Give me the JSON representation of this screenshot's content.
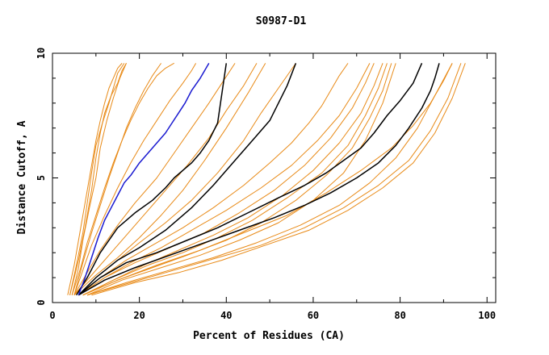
{
  "chart_data": {
    "type": "line",
    "title": "S0987-D1",
    "xlabel": "Percent of Residues (CA)",
    "ylabel": "Distance Cutoff, A",
    "xlim": [
      0,
      102
    ],
    "ylim": [
      0,
      10
    ],
    "xticks": [
      "0",
      "20",
      "40",
      "60",
      "80",
      "100"
    ],
    "yticks": [
      "0",
      "5",
      "10"
    ],
    "grid": false,
    "colors": {
      "orange": "#e88a17",
      "black": "#000000",
      "blue": "#1a1ad0"
    },
    "series": [
      {
        "color": "orange",
        "x": [
          3.5,
          5,
          6,
          7,
          8,
          9,
          10,
          11,
          12,
          13,
          14,
          15,
          16
        ],
        "y": [
          0.3,
          1.5,
          2.5,
          3.5,
          4.5,
          5.5,
          6.5,
          7.3,
          8.0,
          8.6,
          9.0,
          9.4,
          9.6
        ]
      },
      {
        "color": "orange",
        "x": [
          4,
          5.5,
          7,
          8,
          9,
          10,
          11.5,
          13,
          14,
          15,
          16.5
        ],
        "y": [
          0.3,
          1.5,
          2.8,
          4.0,
          5.2,
          6.3,
          7.2,
          8.0,
          8.6,
          9.2,
          9.6
        ]
      },
      {
        "color": "orange",
        "x": [
          4,
          6,
          7.5,
          9,
          10,
          11,
          12,
          13.5,
          15,
          16,
          17
        ],
        "y": [
          0.3,
          1.7,
          3.0,
          4.5,
          5.8,
          6.8,
          7.6,
          8.3,
          8.8,
          9.3,
          9.6
        ]
      },
      {
        "color": "orange",
        "x": [
          4.5,
          6,
          7,
          8.5,
          10,
          11,
          12.5,
          14,
          15.5,
          17
        ],
        "y": [
          0.3,
          1.4,
          2.5,
          3.8,
          5.0,
          6.2,
          7.3,
          8.2,
          9.0,
          9.6
        ]
      },
      {
        "color": "orange",
        "x": [
          5,
          7,
          9,
          11,
          13,
          15,
          17,
          19,
          21,
          23,
          25
        ],
        "y": [
          0.3,
          1.6,
          2.8,
          3.9,
          5.0,
          6.0,
          7.0,
          7.8,
          8.5,
          9.1,
          9.6
        ]
      },
      {
        "color": "orange",
        "x": [
          4.5,
          6.5,
          8,
          10,
          12,
          14,
          16,
          18,
          20,
          22,
          24,
          26,
          28
        ],
        "y": [
          0.3,
          1.4,
          2.4,
          3.5,
          4.6,
          5.6,
          6.5,
          7.3,
          8.0,
          8.6,
          9.1,
          9.4,
          9.6
        ]
      },
      {
        "color": "orange",
        "x": [
          5,
          7,
          9,
          12,
          15,
          18,
          21,
          24,
          27,
          30,
          32,
          33
        ],
        "y": [
          0.3,
          1.3,
          2.3,
          3.5,
          4.6,
          5.6,
          6.5,
          7.3,
          8.1,
          8.8,
          9.3,
          9.6
        ]
      },
      {
        "color": "orange",
        "x": [
          5,
          8,
          11,
          15,
          19,
          24,
          28,
          32,
          36,
          39,
          42
        ],
        "y": [
          0.3,
          1.2,
          2.1,
          3.1,
          4.0,
          5.0,
          6.0,
          7.0,
          8.0,
          8.8,
          9.6
        ]
      },
      {
        "color": "orange",
        "x": [
          5,
          9,
          13,
          17,
          21,
          26,
          31,
          36,
          40,
          44,
          47
        ],
        "y": [
          0.3,
          1.1,
          1.9,
          2.7,
          3.5,
          4.5,
          5.5,
          6.6,
          7.7,
          8.7,
          9.6
        ]
      },
      {
        "color": "orange",
        "x": [
          5,
          10,
          15,
          20,
          25,
          30,
          35,
          40,
          45,
          49
        ],
        "y": [
          0.3,
          1.1,
          1.8,
          2.6,
          3.5,
          4.5,
          5.7,
          7.0,
          8.4,
          9.6
        ]
      },
      {
        "color": "orange",
        "x": [
          6,
          10,
          15,
          20,
          26,
          32,
          38,
          44,
          48,
          52,
          56
        ],
        "y": [
          0.3,
          1.0,
          1.7,
          2.4,
          3.2,
          4.1,
          5.2,
          6.5,
          7.6,
          8.6,
          9.6
        ]
      },
      {
        "color": "orange",
        "x": [
          6,
          11,
          17,
          23,
          30,
          37,
          44,
          50,
          55,
          59,
          62,
          64,
          66,
          68
        ],
        "y": [
          0.3,
          1.0,
          1.7,
          2.3,
          3.0,
          3.8,
          4.7,
          5.6,
          6.4,
          7.2,
          7.9,
          8.5,
          9.1,
          9.6
        ]
      },
      {
        "color": "orange",
        "x": [
          6,
          12,
          18,
          25,
          32,
          40,
          48,
          55,
          61,
          66,
          70,
          73
        ],
        "y": [
          0.3,
          1.0,
          1.6,
          2.2,
          2.9,
          3.7,
          4.6,
          5.5,
          6.5,
          7.5,
          8.6,
          9.6
        ]
      },
      {
        "color": "orange",
        "x": [
          6,
          12,
          19,
          27,
          35,
          43,
          51,
          58,
          64,
          69,
          72,
          74
        ],
        "y": [
          0.3,
          1.0,
          1.6,
          2.2,
          2.8,
          3.6,
          4.5,
          5.5,
          6.6,
          7.8,
          8.8,
          9.6
        ]
      },
      {
        "color": "orange",
        "x": [
          7,
          14,
          21,
          29,
          37,
          45,
          53,
          60,
          66,
          71,
          74,
          76
        ],
        "y": [
          0.3,
          0.9,
          1.5,
          2.1,
          2.7,
          3.4,
          4.3,
          5.3,
          6.4,
          7.6,
          8.7,
          9.6
        ]
      },
      {
        "color": "orange",
        "x": [
          7,
          14,
          22,
          30,
          38,
          46,
          54,
          62,
          68,
          72,
          75,
          77
        ],
        "y": [
          0.3,
          0.9,
          1.5,
          2.0,
          2.6,
          3.3,
          4.2,
          5.2,
          6.3,
          7.5,
          8.6,
          9.6
        ]
      },
      {
        "color": "orange",
        "x": [
          7,
          15,
          23,
          31,
          40,
          48,
          56,
          63,
          69,
          73,
          76,
          78
        ],
        "y": [
          0.3,
          0.9,
          1.4,
          1.9,
          2.5,
          3.2,
          4.1,
          5.1,
          6.2,
          7.4,
          8.5,
          9.6
        ]
      },
      {
        "color": "orange",
        "x": [
          8,
          16,
          25,
          34,
          43,
          52,
          60,
          67,
          72,
          76,
          79
        ],
        "y": [
          0.3,
          0.9,
          1.4,
          1.9,
          2.5,
          3.2,
          4.1,
          5.2,
          6.5,
          8.0,
          9.6
        ]
      },
      {
        "color": "orange",
        "x": [
          8,
          17,
          27,
          37,
          47,
          57,
          66,
          73,
          79,
          84,
          88,
          92
        ],
        "y": [
          0.3,
          0.8,
          1.3,
          1.8,
          2.4,
          3.1,
          3.9,
          4.8,
          5.8,
          7.0,
          8.3,
          9.6
        ]
      },
      {
        "color": "orange",
        "x": [
          8,
          18,
          28,
          38,
          48,
          58,
          67,
          75,
          82,
          87,
          91,
          94
        ],
        "y": [
          0.3,
          0.8,
          1.3,
          1.8,
          2.3,
          3.0,
          3.8,
          4.7,
          5.7,
          6.9,
          8.2,
          9.6
        ]
      },
      {
        "color": "orange",
        "x": [
          9,
          19,
          29,
          39,
          49,
          59,
          68,
          76,
          83,
          88,
          92,
          95
        ],
        "y": [
          0.3,
          0.8,
          1.2,
          1.7,
          2.3,
          2.9,
          3.7,
          4.6,
          5.6,
          6.8,
          8.2,
          9.6
        ]
      },
      {
        "color": "orange",
        "x": [
          7,
          15,
          24,
          34,
          44,
          54,
          63,
          71,
          78,
          83,
          87,
          90,
          92
        ],
        "y": [
          0.3,
          0.9,
          1.5,
          2.1,
          2.8,
          3.5,
          4.4,
          5.3,
          6.2,
          7.1,
          8.0,
          8.9,
          9.6
        ]
      },
      {
        "color": "black",
        "x": [
          5.5,
          8,
          11,
          15,
          19,
          23,
          26,
          28,
          30,
          32,
          34,
          36,
          38,
          40
        ],
        "y": [
          0.3,
          1.0,
          2.0,
          3.0,
          3.6,
          4.1,
          4.6,
          5.0,
          5.3,
          5.6,
          6.0,
          6.5,
          7.2,
          9.6
        ]
      },
      {
        "color": "black",
        "x": [
          6,
          10,
          15,
          20,
          26,
          32,
          37,
          41,
          44,
          47,
          50,
          52,
          54,
          56
        ],
        "y": [
          0.3,
          1.0,
          1.7,
          2.2,
          2.9,
          3.8,
          4.7,
          5.5,
          6.1,
          6.7,
          7.3,
          8.0,
          8.7,
          9.6
        ]
      },
      {
        "color": "black",
        "x": [
          6,
          11,
          17,
          24,
          31,
          38,
          45,
          52,
          58,
          63,
          67,
          71,
          74,
          77,
          80,
          83,
          85
        ],
        "y": [
          0.3,
          1.0,
          1.6,
          2.0,
          2.5,
          3.0,
          3.6,
          4.2,
          4.7,
          5.2,
          5.7,
          6.2,
          6.8,
          7.5,
          8.1,
          8.8,
          9.6
        ]
      },
      {
        "color": "black",
        "x": [
          6,
          12,
          19,
          27,
          35,
          43,
          51,
          58,
          64,
          70,
          75,
          79,
          82,
          85,
          87,
          88,
          89
        ],
        "y": [
          0.3,
          0.9,
          1.4,
          1.9,
          2.4,
          2.9,
          3.4,
          3.9,
          4.4,
          5.0,
          5.6,
          6.3,
          7.0,
          7.8,
          8.5,
          9.0,
          9.6
        ]
      },
      {
        "color": "blue",
        "x": [
          6,
          7.5,
          9,
          10.5,
          12,
          13.5,
          15,
          16.5,
          18,
          20,
          22,
          24,
          26,
          27.5,
          29,
          30.5,
          32,
          34,
          36
        ],
        "y": [
          0.3,
          1.0,
          1.8,
          2.6,
          3.3,
          3.8,
          4.3,
          4.8,
          5.1,
          5.6,
          6.0,
          6.4,
          6.8,
          7.2,
          7.6,
          8.0,
          8.5,
          9.0,
          9.6
        ]
      }
    ]
  }
}
